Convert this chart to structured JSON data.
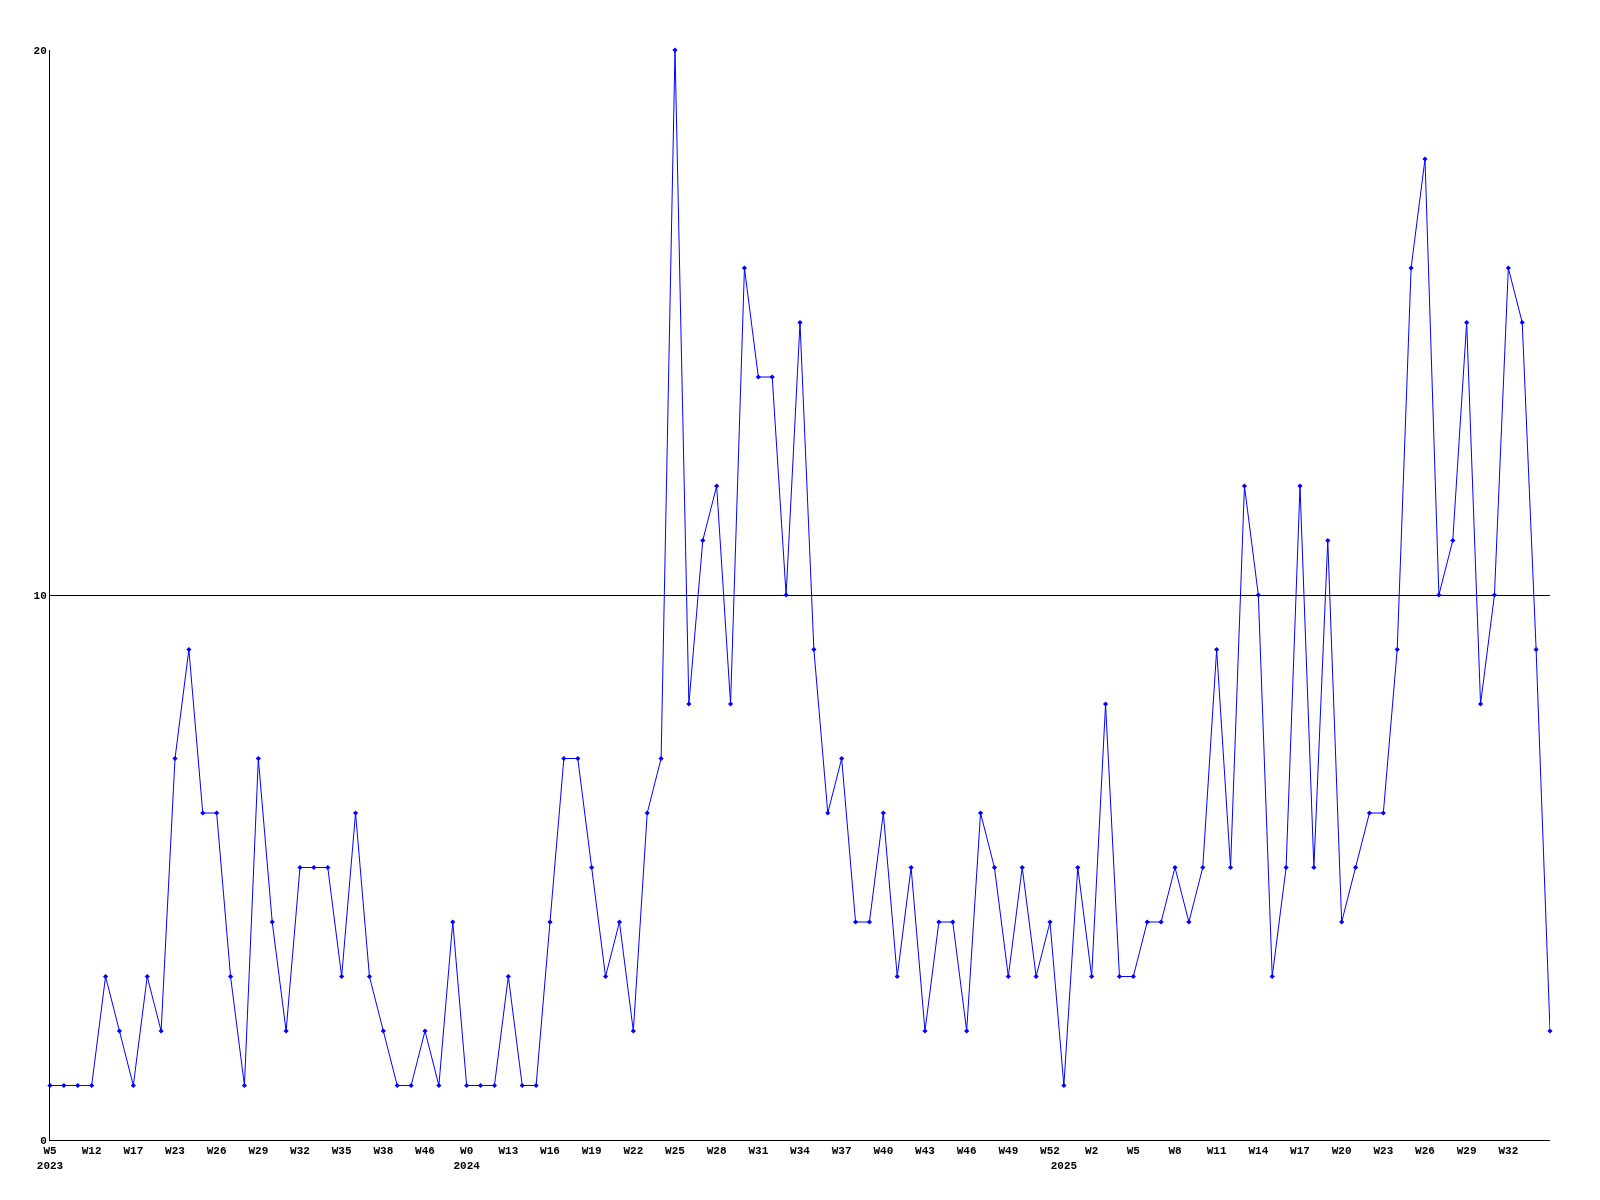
{
  "chart_data": {
    "type": "line",
    "categories": [
      "W5\n2023",
      null,
      null,
      "W12",
      null,
      null,
      "W17",
      null,
      null,
      "W23",
      null,
      null,
      "W26",
      null,
      null,
      "W29",
      null,
      null,
      "W32",
      null,
      null,
      "W35",
      null,
      null,
      "W38",
      null,
      null,
      "W46",
      null,
      null,
      "W0\n2024",
      null,
      null,
      "W13",
      null,
      null,
      "W16",
      null,
      null,
      "W19",
      null,
      null,
      "W22",
      null,
      null,
      "W25",
      null,
      null,
      "W28",
      null,
      null,
      "W31",
      null,
      null,
      "W34",
      null,
      null,
      "W37",
      null,
      null,
      "W40",
      null,
      null,
      "W43",
      null,
      null,
      "W46",
      null,
      null,
      "W49",
      null,
      null,
      "W52",
      "\n2025",
      null,
      "W2",
      null,
      null,
      "W5",
      null,
      null,
      "W8",
      null,
      null,
      "W11",
      null,
      null,
      "W14",
      null,
      null,
      "W17",
      null,
      null,
      "W20",
      null,
      null,
      "W23",
      null,
      null,
      "W26",
      null,
      null,
      "W29",
      null,
      null,
      "W32",
      null,
      null,
      null
    ],
    "series": [
      {
        "color": "#0000ff",
        "values": [
          1,
          1,
          1,
          1,
          3,
          2,
          1,
          3,
          2,
          7,
          9,
          6,
          6,
          3,
          1,
          7,
          4,
          2,
          5,
          5,
          5,
          3,
          6,
          3,
          2,
          1,
          1,
          2,
          1,
          4,
          1,
          1,
          1,
          3,
          1,
          1,
          4,
          7,
          7,
          5,
          3,
          4,
          2,
          6,
          7,
          20,
          8,
          11,
          12,
          8,
          16,
          14,
          14,
          10,
          15,
          9,
          6,
          7,
          4,
          4,
          6,
          3,
          5,
          2,
          4,
          4,
          2,
          6,
          5,
          3,
          5,
          3,
          4,
          1,
          5,
          3,
          8,
          3,
          3,
          4,
          4,
          5,
          4,
          5,
          9,
          5,
          12,
          10,
          3,
          5,
          12,
          5,
          11,
          4,
          5,
          6,
          6,
          9,
          16,
          18,
          10,
          11,
          15,
          8,
          10,
          16,
          15,
          9,
          2
        ]
      }
    ],
    "ylim": [
      0,
      20
    ],
    "yticks": [
      0,
      10,
      20
    ],
    "grid": "y",
    "marker": "diamond",
    "line_style": "solid"
  }
}
